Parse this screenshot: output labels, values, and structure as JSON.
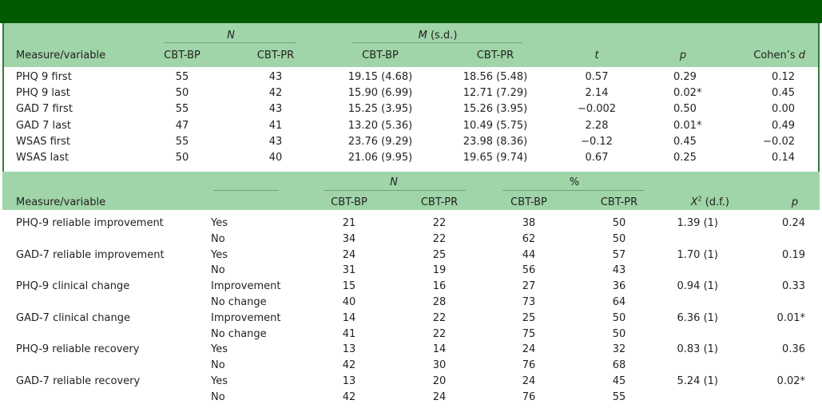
{
  "table1": {
    "group_n": "N",
    "group_m": "M",
    "group_m_suffix": " (s.d.)",
    "headers": {
      "measure": "Measure/variable",
      "n_bp": "CBT-BP",
      "n_pr": "CBT-PR",
      "m_bp": "CBT-BP",
      "m_pr": "CBT-PR",
      "t": "t",
      "p": "p",
      "d_prefix": "Cohen’s ",
      "d_sym": "d"
    },
    "rows": [
      {
        "measure": "PHQ 9 first",
        "n_bp": "55",
        "n_pr": "43",
        "m_bp": "19.15 (4.68)",
        "m_pr": "18.56 (5.48)",
        "t": "0.57",
        "p": "0.29",
        "d": "0.12"
      },
      {
        "measure": "PHQ 9 last",
        "n_bp": "50",
        "n_pr": "42",
        "m_bp": "15.90 (6.99)",
        "m_pr": "12.71 (7.29)",
        "t": "2.14",
        "p": "0.02*",
        "d": "0.45"
      },
      {
        "measure": "GAD 7 first",
        "n_bp": "55",
        "n_pr": "43",
        "m_bp": "15.25 (3.95)",
        "m_pr": "15.26 (3.95)",
        "t": "−0.002",
        "p": "0.50",
        "d": "0.00"
      },
      {
        "measure": "GAD 7 last",
        "n_bp": "47",
        "n_pr": "41",
        "m_bp": "13.20 (5.36)",
        "m_pr": "10.49 (5.75)",
        "t": "2.28",
        "p": "0.01*",
        "d": "0.49"
      },
      {
        "measure": "WSAS first",
        "n_bp": "55",
        "n_pr": "43",
        "m_bp": "23.76 (9.29)",
        "m_pr": "23.98 (8.36)",
        "t": "−0.12",
        "p": "0.45",
        "d": "−0.02"
      },
      {
        "measure": "WSAS last",
        "n_bp": "50",
        "n_pr": "40",
        "m_bp": "21.06 (9.95)",
        "m_pr": "19.65 (9.74)",
        "t": "0.67",
        "p": "0.25",
        "d": "0.14"
      }
    ]
  },
  "table2": {
    "group_n": "N",
    "group_pct": "%",
    "headers": {
      "measure": "Measure/variable",
      "n_bp": "CBT-BP",
      "n_pr": "CBT-PR",
      "pct_bp": "CBT-BP",
      "pct_pr": "CBT-PR",
      "chi_sym": "X",
      "chi_sup": "2",
      "chi_suffix": " (d.f.)",
      "p": "p"
    },
    "rows": [
      {
        "measure": "PHQ-9 reliable improvement",
        "cat": "Yes",
        "n_bp": "21",
        "n_pr": "22",
        "pct_bp": "38",
        "pct_pr": "50",
        "chi": "1.39 (1)",
        "p": "0.24"
      },
      {
        "measure": "",
        "cat": "No",
        "n_bp": "34",
        "n_pr": "22",
        "pct_bp": "62",
        "pct_pr": "50",
        "chi": "",
        "p": ""
      },
      {
        "measure": "GAD-7 reliable improvement",
        "cat": "Yes",
        "n_bp": "24",
        "n_pr": "25",
        "pct_bp": "44",
        "pct_pr": "57",
        "chi": "1.70 (1)",
        "p": "0.19"
      },
      {
        "measure": "",
        "cat": "No",
        "n_bp": "31",
        "n_pr": "19",
        "pct_bp": "56",
        "pct_pr": "43",
        "chi": "",
        "p": ""
      },
      {
        "measure": "PHQ-9 clinical change",
        "cat": "Improvement",
        "n_bp": "15",
        "n_pr": "16",
        "pct_bp": "27",
        "pct_pr": "36",
        "chi": "0.94 (1)",
        "p": "0.33"
      },
      {
        "measure": "",
        "cat": "No change",
        "n_bp": "40",
        "n_pr": "28",
        "pct_bp": "73",
        "pct_pr": "64",
        "chi": "",
        "p": ""
      },
      {
        "measure": "GAD-7 clinical change",
        "cat": "Improvement",
        "n_bp": "14",
        "n_pr": "22",
        "pct_bp": "25",
        "pct_pr": "50",
        "chi": "6.36 (1)",
        "p": "0.01*"
      },
      {
        "measure": "",
        "cat": "No change",
        "n_bp": "41",
        "n_pr": "22",
        "pct_bp": "75",
        "pct_pr": "50",
        "chi": "",
        "p": ""
      },
      {
        "measure": "PHQ-9 reliable recovery",
        "cat": "Yes",
        "n_bp": "13",
        "n_pr": "14",
        "pct_bp": "24",
        "pct_pr": "32",
        "chi": "0.83 (1)",
        "p": "0.36"
      },
      {
        "measure": "",
        "cat": "No",
        "n_bp": "42",
        "n_pr": "30",
        "pct_bp": "76",
        "pct_pr": "68",
        "chi": "",
        "p": ""
      },
      {
        "measure": "GAD-7 reliable recovery",
        "cat": "Yes",
        "n_bp": "13",
        "n_pr": "20",
        "pct_bp": "24",
        "pct_pr": "45",
        "chi": "5.24 (1)",
        "p": "0.02*"
      },
      {
        "measure": "",
        "cat": "No",
        "n_bp": "42",
        "n_pr": "24",
        "pct_bp": "76",
        "pct_pr": "55",
        "chi": "",
        "p": ""
      }
    ]
  },
  "colors": {
    "top_bar": "#005a00",
    "header_fill": "#9fd5a8",
    "border": "#2f7d3a"
  }
}
